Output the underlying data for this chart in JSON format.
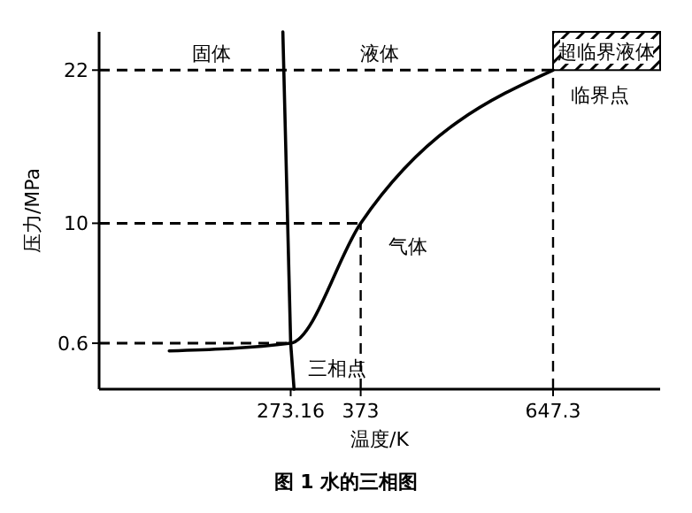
{
  "chart_data": {
    "type": "line",
    "title": "图 1 水的三相图",
    "xlabel": "温度/K",
    "ylabel": "压力/MPa",
    "xlim": [
      0,
      800
    ],
    "ylim": [
      -3,
      25
    ],
    "xticks": [
      273.16,
      373,
      647.3
    ],
    "yticks": [
      0.6,
      10,
      22
    ],
    "series": [
      {
        "color": "#000000",
        "x": [
          100,
          273.16,
          373,
          647.3
        ],
        "values": [
          0,
          0.6,
          10,
          22
        ]
      },
      {
        "color": "#000000",
        "x": [
          262,
          273.16,
          278
        ],
        "values": [
          25,
          0.6,
          -3
        ]
      }
    ],
    "ref_lines": [
      {
        "axis": "y",
        "value": 0.6,
        "line_style": "dashed"
      },
      {
        "axis": "y",
        "value": 10,
        "line_style": "dashed"
      },
      {
        "axis": "y",
        "value": 22,
        "line_style": "dashed"
      },
      {
        "axis": "x",
        "value": 373,
        "line_style": "dashed"
      },
      {
        "axis": "x",
        "value": 647.3,
        "line_style": "dashed"
      }
    ],
    "bands": [
      {
        "axis": "y",
        "from": 22,
        "to": 25,
        "label": "超临界液体",
        "color": "#000000"
      }
    ],
    "annotations": [
      "固体",
      "液体",
      "气体",
      {
        "text": "三相点",
        "x": 273.16,
        "y": 0.6
      },
      {
        "text": "临界点",
        "x": 647.3,
        "y": 22
      }
    ],
    "marker": "none",
    "line_style": "solid"
  }
}
